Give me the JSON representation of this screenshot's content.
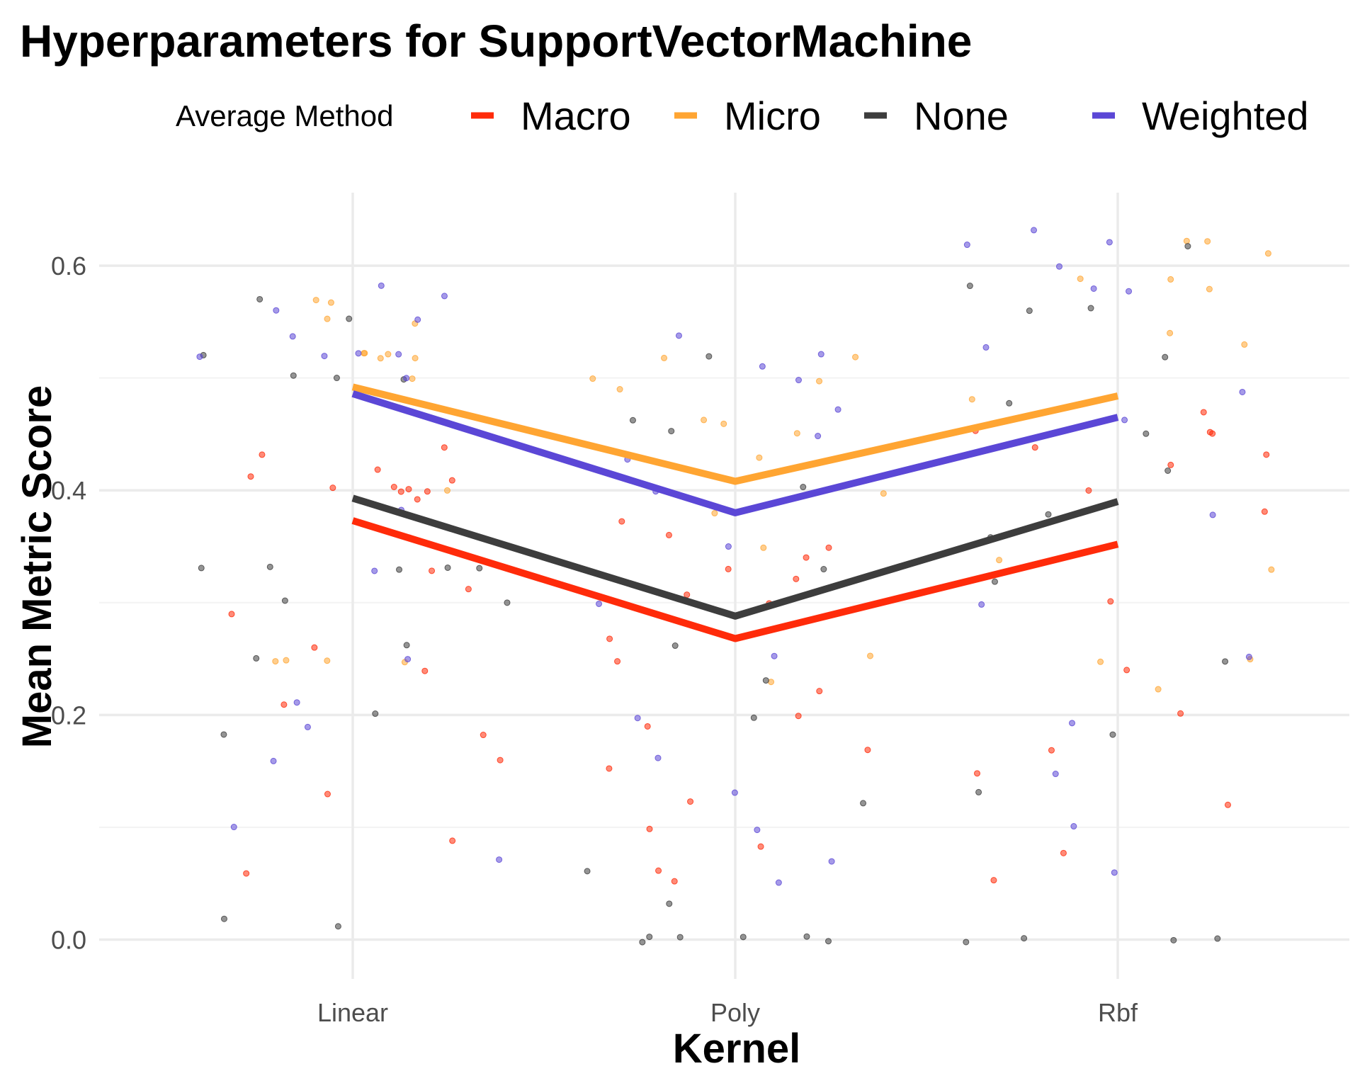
{
  "chart_data": {
    "type": "line",
    "title": "Hyperparameters for SupportVectorMachine",
    "xlabel": "Kernel",
    "ylabel": "Mean Metric Score",
    "categories": [
      "Linear",
      "Poly",
      "Rbf"
    ],
    "ylim": [
      -0.035,
      0.665
    ],
    "yticks": [
      0.0,
      0.2,
      0.4,
      0.6
    ],
    "yticklabels": [
      "0.0",
      "0.2",
      "0.4",
      "0.6"
    ],
    "grid": true,
    "legend": {
      "title": "Average Method",
      "position": "top"
    },
    "series": [
      {
        "name": "Macro",
        "color": "#ff2b0a",
        "values": [
          0.373,
          0.268,
          0.352
        ]
      },
      {
        "name": "Micro",
        "color": "#ffa532",
        "values": [
          0.492,
          0.408,
          0.484
        ]
      },
      {
        "name": "None",
        "color": "#3d3d3d",
        "values": [
          0.393,
          0.288,
          0.39
        ]
      },
      {
        "name": "Weighted",
        "color": "#5b47d6",
        "values": [
          0.486,
          0.38,
          0.465
        ]
      }
    ],
    "jitter_points": {
      "description": "Jittered individual runs (semi-transparent points) per kernel and average method",
      "levels": {
        "Linear": {
          "Macro": [
            0.4,
            0.4,
            0.4,
            0.41,
            0.39,
            0.4,
            0.44,
            0.42,
            0.43,
            0.31,
            0.29,
            0.24,
            0.21,
            0.18,
            0.13,
            0.09,
            0.06,
            0.26,
            0.16,
            0.33,
            0.4,
            0.41
          ],
          "Micro": [
            0.52,
            0.52,
            0.52,
            0.5,
            0.55,
            0.57,
            0.55,
            0.57,
            0.25,
            0.25,
            0.25,
            0.25,
            0.4,
            0.52,
            0.52
          ],
          "None": [
            0.52,
            0.5,
            0.5,
            0.55,
            0.57,
            0.33,
            0.33,
            0.33,
            0.33,
            0.3,
            0.3,
            0.25,
            0.26,
            0.2,
            0.18,
            0.02,
            0.01,
            0.5,
            0.33
          ],
          "Weighted": [
            0.52,
            0.52,
            0.55,
            0.57,
            0.58,
            0.54,
            0.56,
            0.52,
            0.5,
            0.38,
            0.36,
            0.33,
            0.25,
            0.21,
            0.19,
            0.16,
            0.1,
            0.07,
            0.52
          ]
        },
        "Poly": {
          "Macro": [
            0.35,
            0.33,
            0.37,
            0.31,
            0.3,
            0.27,
            0.25,
            0.22,
            0.2,
            0.19,
            0.17,
            0.15,
            0.12,
            0.1,
            0.08,
            0.06,
            0.05,
            0.36,
            0.34,
            0.32
          ],
          "Micro": [
            0.52,
            0.5,
            0.49,
            0.46,
            0.45,
            0.43,
            0.38,
            0.35,
            0.25,
            0.23,
            0.52,
            0.5,
            0.46,
            0.4
          ],
          "None": [
            0.52,
            0.46,
            0.45,
            0.4,
            0.33,
            0.3,
            0.26,
            0.23,
            0.2,
            0.12,
            0.06,
            0.03,
            0.0,
            0.0,
            0.0,
            0.0,
            0.0,
            0.0
          ],
          "Weighted": [
            0.52,
            0.5,
            0.47,
            0.45,
            0.43,
            0.4,
            0.35,
            0.3,
            0.25,
            0.2,
            0.16,
            0.13,
            0.1,
            0.07,
            0.05,
            0.54,
            0.51
          ]
        },
        "Rbf": {
          "Macro": [
            0.47,
            0.45,
            0.45,
            0.44,
            0.42,
            0.4,
            0.38,
            0.3,
            0.24,
            0.2,
            0.17,
            0.15,
            0.12,
            0.08,
            0.05,
            0.45,
            0.43
          ],
          "Micro": [
            0.62,
            0.61,
            0.59,
            0.58,
            0.54,
            0.53,
            0.48,
            0.34,
            0.33,
            0.25,
            0.25,
            0.22,
            0.62,
            0.59
          ],
          "None": [
            0.62,
            0.58,
            0.56,
            0.52,
            0.48,
            0.45,
            0.42,
            0.38,
            0.36,
            0.32,
            0.25,
            0.18,
            0.13,
            0.0,
            0.0,
            0.0,
            0.0,
            0.56
          ],
          "Weighted": [
            0.63,
            0.62,
            0.6,
            0.58,
            0.53,
            0.49,
            0.46,
            0.38,
            0.3,
            0.25,
            0.19,
            0.15,
            0.1,
            0.06,
            0.62,
            0.58
          ]
        }
      }
    }
  }
}
